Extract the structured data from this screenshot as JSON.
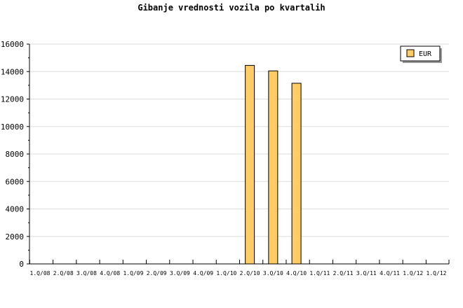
{
  "chart_data": {
    "type": "bar",
    "title": "Gibanje vrednosti vozila po kvartalih",
    "categories": [
      "1.Q/08",
      "2.Q/08",
      "3.Q/08",
      "4.Q/08",
      "1.Q/09",
      "2.Q/09",
      "3.Q/09",
      "4.Q/09",
      "1.Q/10",
      "2.Q/10",
      "3.Q/10",
      "4.Q/10",
      "1.Q/11",
      "2.Q/11",
      "3.Q/11",
      "4.Q/11",
      "1.Q/12",
      "1.Q/12"
    ],
    "series": [
      {
        "name": "EUR",
        "values": [
          null,
          null,
          null,
          null,
          null,
          null,
          null,
          null,
          null,
          14450,
          14050,
          13150,
          null,
          null,
          null,
          null,
          null,
          null
        ],
        "color": "#ffcc66"
      }
    ],
    "ylim": [
      0,
      16000
    ],
    "yticks": [
      0,
      2000,
      4000,
      6000,
      8000,
      10000,
      12000,
      14000,
      16000
    ],
    "grid": true,
    "legend": "top-right",
    "xlabel": "",
    "ylabel": ""
  }
}
